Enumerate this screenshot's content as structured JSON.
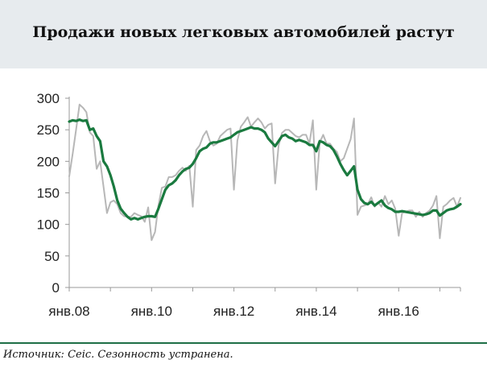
{
  "title": "Продажи новых легковых автомобилей растут",
  "source": "Источник: Ceic. Сезонность устранена.",
  "colors": {
    "header_background": "#e7ebee",
    "rule": "#1e6e46",
    "raw_series": "#b7b7b7",
    "sa_series": "#1a7a3f"
  },
  "chart_data": {
    "type": "line",
    "title": "Продажи новых легковых автомобилей растут",
    "xlabel": "",
    "ylabel": "",
    "ylim": [
      0,
      300
    ],
    "yticks": [
      "0",
      "50",
      "100",
      "150",
      "200",
      "250",
      "300"
    ],
    "xticks": [
      "янв.08",
      "янв.10",
      "янв.12",
      "янв.14",
      "янв.16"
    ],
    "grid": false,
    "legend": "none",
    "x_start": "2008-01",
    "x_end": "2017-07",
    "series": [
      {
        "color": "#b7b7b7",
        "values": [
          176,
          212,
          250,
          290,
          285,
          278,
          246,
          240,
          188,
          200,
          160,
          118,
          135,
          138,
          132,
          118,
          113,
          112,
          112,
          118,
          115,
          113,
          104,
          127,
          75,
          88,
          130,
          158,
          160,
          175,
          175,
          178,
          185,
          190,
          185,
          193,
          128,
          218,
          225,
          240,
          248,
          232,
          225,
          228,
          240,
          245,
          250,
          252,
          155,
          233,
          255,
          262,
          270,
          255,
          262,
          268,
          262,
          252,
          258,
          260,
          165,
          225,
          245,
          250,
          250,
          245,
          240,
          238,
          242,
          242,
          228,
          265,
          155,
          230,
          242,
          228,
          228,
          220,
          215,
          200,
          205,
          220,
          235,
          268,
          115,
          128,
          130,
          132,
          143,
          128,
          135,
          128,
          145,
          132,
          138,
          125,
          82,
          118,
          120,
          122,
          122,
          112,
          120,
          112,
          118,
          122,
          130,
          145,
          78,
          128,
          132,
          138,
          142,
          128,
          142
        ]
      },
      {
        "color": "#1a7a3f",
        "values": [
          263,
          265,
          264,
          266,
          264,
          265,
          250,
          252,
          240,
          232,
          200,
          192,
          178,
          160,
          138,
          125,
          118,
          112,
          108,
          110,
          108,
          110,
          112,
          113,
          113,
          112,
          125,
          140,
          155,
          162,
          165,
          170,
          178,
          184,
          188,
          190,
          196,
          205,
          216,
          220,
          222,
          228,
          230,
          230,
          232,
          234,
          236,
          238,
          242,
          246,
          248,
          250,
          252,
          254,
          252,
          252,
          250,
          246,
          236,
          230,
          224,
          232,
          240,
          242,
          238,
          236,
          232,
          234,
          232,
          230,
          226,
          226,
          216,
          232,
          230,
          226,
          224,
          218,
          208,
          196,
          186,
          178,
          185,
          192,
          155,
          140,
          134,
          132,
          136,
          130,
          134,
          138,
          130,
          126,
          124,
          120,
          120,
          121,
          120,
          119,
          118,
          117,
          116,
          115,
          116,
          118,
          122,
          122,
          114,
          118,
          122,
          124,
          125,
          128,
          132
        ]
      }
    ]
  }
}
